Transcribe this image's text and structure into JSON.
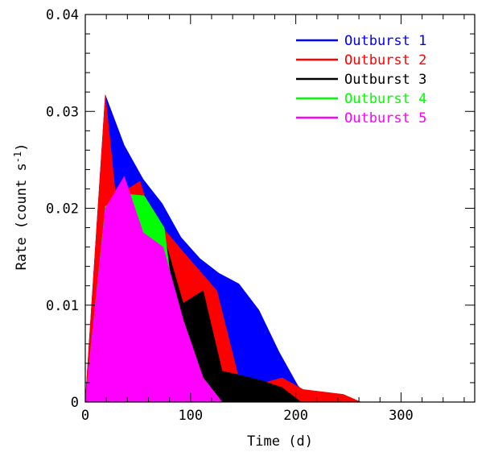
{
  "chart_data": {
    "type": "area",
    "title": "",
    "xlabel": "Time (d)",
    "ylabel": "Rate (count s",
    "ylabel_sup": "-1",
    "ylabel_close": ")",
    "xlim": [
      0,
      370
    ],
    "ylim": [
      0,
      0.04
    ],
    "x_ticks": [
      0,
      100,
      200,
      300
    ],
    "x_tick_labels": [
      "0",
      "100",
      "200",
      "300"
    ],
    "y_ticks": [
      0,
      0.01,
      0.02,
      0.03,
      0.04
    ],
    "y_tick_labels": [
      "0",
      "0.01",
      "0.02",
      "0.03",
      "0.04"
    ],
    "x_minor_step": 20,
    "y_minor_step": 0.002,
    "grid": false,
    "legend_position": "top-right",
    "series": [
      {
        "name": "Outburst 1",
        "color": "#0000ff",
        "x": [
          0,
          19,
          37,
          55,
          73,
          91,
          109,
          127,
          146,
          165,
          184,
          202,
          215,
          0
        ],
        "y": [
          0,
          0.0317,
          0.0265,
          0.023,
          0.0205,
          0.017,
          0.0148,
          0.0133,
          0.0122,
          0.0095,
          0.0052,
          0.0017,
          0.0003,
          0
        ]
      },
      {
        "name": "Outburst 2",
        "color": "#ff0000",
        "x": [
          0,
          19,
          29,
          52,
          57,
          62,
          93,
          125,
          145,
          160,
          187,
          207,
          245,
          262,
          0
        ],
        "y": [
          0,
          0.0317,
          0.0212,
          0.0228,
          0.021,
          0.0195,
          0.0155,
          0.0115,
          0.0028,
          0.0017,
          0.0025,
          0.0013,
          0.0008,
          0,
          0
        ]
      },
      {
        "name": "Outburst 3",
        "color": "#000000",
        "x": [
          0,
          19,
          37,
          56,
          75,
          93,
          112,
          130,
          150,
          168,
          187,
          205,
          0
        ],
        "y": [
          0,
          0.0202,
          0.0215,
          0.0213,
          0.017,
          0.0102,
          0.0115,
          0.0032,
          0.0027,
          0.0022,
          0.0015,
          0,
          0
        ]
      },
      {
        "name": "Outburst 4",
        "color": "#00ff00",
        "x": [
          0,
          19,
          37,
          56,
          75,
          93,
          112,
          130,
          0
        ],
        "y": [
          0,
          0.0202,
          0.0215,
          0.0213,
          0.018,
          0.0025,
          0.0025,
          0,
          0
        ]
      },
      {
        "name": "Outburst 5",
        "color": "#ff00ff",
        "x": [
          0,
          19,
          37,
          55,
          74,
          93,
          112,
          130,
          0
        ],
        "y": [
          0,
          0.02,
          0.0233,
          0.0175,
          0.016,
          0.0085,
          0.0025,
          0,
          0
        ]
      }
    ]
  }
}
